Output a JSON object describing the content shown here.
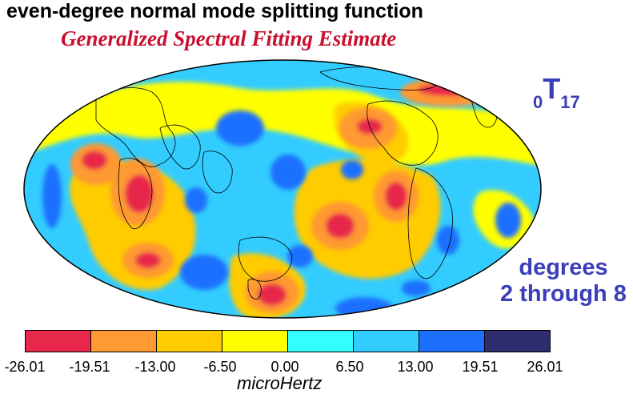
{
  "title": "even-degree normal mode splitting function",
  "subtitle": "Generalized Spectral Fitting Estimate",
  "mode_label": {
    "prefix": "0",
    "main": "T",
    "subscript": "17"
  },
  "degrees_label": {
    "line1": "degrees",
    "line2": "2 through 8"
  },
  "colorbar": {
    "colors": [
      "#e8284a",
      "#ff9933",
      "#ffcc00",
      "#ffff00",
      "#33ffff",
      "#33ccff",
      "#1f6fff",
      "#2e2d6e"
    ],
    "ticks": [
      "-26.01",
      "-19.51",
      "-13.00",
      "-6.50",
      "0.00",
      "6.50",
      "13.00",
      "19.51",
      "26.01"
    ],
    "unit": "microHertz"
  },
  "map": {
    "projection": "Hammer/Mollweide global, Pacific-centered",
    "ocean_base_color": "#33ccff"
  }
}
